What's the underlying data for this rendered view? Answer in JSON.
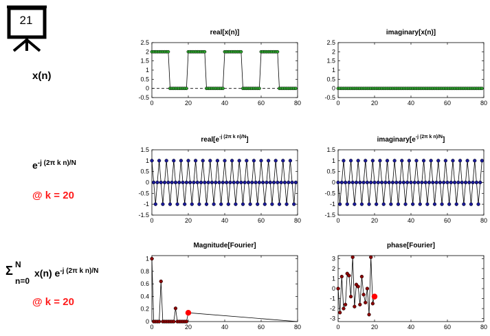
{
  "slide": {
    "number": "21"
  },
  "labels": {
    "row1": "x(n)",
    "row2_base": "e",
    "row2_sup": "-j (2π k n)/N",
    "row2_at": "@ k = 20",
    "row3_sigma": "Σ",
    "row3_top": "N",
    "row3_bottom": "n=0",
    "row3_mid": "x(n) e",
    "row3_sup": "-j (2π k n)/N",
    "row3_at": "@ k = 20"
  },
  "colors": {
    "green": "#2ca02c",
    "blue": "#1a1a99",
    "darkred": "#8b0000",
    "red": "#ff0000",
    "label_red": "#ff1a1a"
  },
  "chart_data": [
    {
      "id": "p1",
      "type": "line",
      "title": "real[x(n)]",
      "xlim": [
        0,
        80
      ],
      "ylim": [
        -0.5,
        2.5
      ],
      "xticks": [
        0,
        20,
        40,
        60,
        80
      ],
      "yticks": [
        -0.5,
        0,
        0.5,
        1,
        1.5,
        2,
        2.5
      ],
      "yticklabels": [
        "-0.5",
        "0",
        "0.5",
        "1",
        "1.5",
        "2",
        "2.5"
      ],
      "zero_line": true,
      "marker_color": "#2ca02c",
      "signal": "square",
      "period": 20,
      "high": 2,
      "high_len": 10,
      "n": 80
    },
    {
      "id": "p2",
      "type": "line",
      "title": "imaginary[x(n)]",
      "xlim": [
        0,
        80
      ],
      "ylim": [
        -0.5,
        2.5
      ],
      "xticks": [
        0,
        20,
        40,
        60,
        80
      ],
      "yticks": [
        -0.5,
        0,
        0.5,
        1,
        1.5,
        2,
        2.5
      ],
      "yticklabels": [
        "-0.5",
        "0",
        "0.5",
        "1",
        "1.5",
        "2",
        "2.5"
      ],
      "zero_line": false,
      "marker_color": "#2ca02c",
      "signal": "zero",
      "n": 80
    },
    {
      "id": "p3",
      "type": "line",
      "title": "real[e",
      "title_sup": "-j (2π k n)/N",
      "title_end": "]",
      "xlim": [
        0,
        80
      ],
      "ylim": [
        -1.5,
        1.5
      ],
      "xticks": [
        0,
        20,
        40,
        60,
        80
      ],
      "yticks": [
        -1.5,
        -1,
        -0.5,
        0,
        0.5,
        1,
        1.5
      ],
      "yticklabels": [
        "-1.5",
        "-1",
        "-0.5",
        "0",
        "0.5",
        "1",
        "1.5"
      ],
      "zero_line": false,
      "marker_color": "#1a1a99",
      "signal": "cos",
      "k": 20,
      "N": 80,
      "n": 80
    },
    {
      "id": "p4",
      "type": "line",
      "title": "imaginary[e",
      "title_sup": "-j (2π k n)/N",
      "title_end": "]",
      "xlim": [
        0,
        80
      ],
      "ylim": [
        -1.5,
        1.5
      ],
      "xticks": [
        0,
        20,
        40,
        60,
        80
      ],
      "yticks": [
        -1.5,
        -1,
        -0.5,
        0,
        0.5,
        1,
        1.5
      ],
      "yticklabels": [
        "-1.5",
        "-1",
        "-0.5",
        "0",
        "0.5",
        "1",
        "1.5"
      ],
      "zero_line": false,
      "marker_color": "#1a1a99",
      "signal": "sin",
      "k": 20,
      "N": 80,
      "n": 80
    },
    {
      "id": "p5",
      "type": "line",
      "title": "Magnitude[Fourier]",
      "xlim": [
        0,
        80
      ],
      "ylim": [
        0,
        1.05
      ],
      "xticks": [
        0,
        20,
        40,
        60,
        80
      ],
      "yticks": [
        0,
        0.2,
        0.4,
        0.6,
        0.8,
        1
      ],
      "yticklabels": [
        "0",
        "0.2",
        "0.4",
        "0.6",
        "0.8",
        "1"
      ],
      "zero_line": false,
      "marker_color": "#8b0000",
      "x": [
        0,
        1,
        2,
        3,
        4,
        5,
        6,
        7,
        8,
        9,
        10,
        11,
        12,
        13,
        14,
        15,
        16,
        17,
        18,
        19
      ],
      "y": [
        1,
        0,
        0,
        0,
        0,
        0.64,
        0,
        0,
        0,
        0,
        0,
        0,
        0,
        0.21,
        0,
        0,
        0,
        0,
        0,
        0
      ],
      "tail_to": 80,
      "highlight": {
        "x": 20,
        "y": 0.14,
        "color": "#ff0000"
      }
    },
    {
      "id": "p6",
      "type": "line",
      "title": "phase[Fourier]",
      "xlim": [
        0,
        80
      ],
      "ylim": [
        -3.3,
        3.3
      ],
      "xticks": [
        0,
        20,
        40,
        60,
        80
      ],
      "yticks": [
        -3,
        -2,
        -1,
        0,
        1,
        2,
        3
      ],
      "yticklabels": [
        "-3",
        "-2",
        "-1",
        "0",
        "1",
        "2",
        "3"
      ],
      "zero_line": false,
      "marker_color": "#8b0000",
      "x": [
        0,
        1,
        2,
        3,
        4,
        5,
        6,
        7,
        8,
        9,
        10,
        11,
        12,
        13,
        14,
        15,
        16,
        17,
        18,
        19
      ],
      "y": [
        0,
        -2.4,
        1.2,
        -2.0,
        -1.6,
        1.5,
        1.3,
        -0.8,
        3.14,
        -1.8,
        0.4,
        0.2,
        -1.6,
        1.2,
        -0.6,
        -1.4,
        0.0,
        -2.6,
        3.14,
        -1.5
      ],
      "highlight": {
        "x": 20,
        "y": -0.8,
        "color": "#ff0000"
      }
    }
  ]
}
